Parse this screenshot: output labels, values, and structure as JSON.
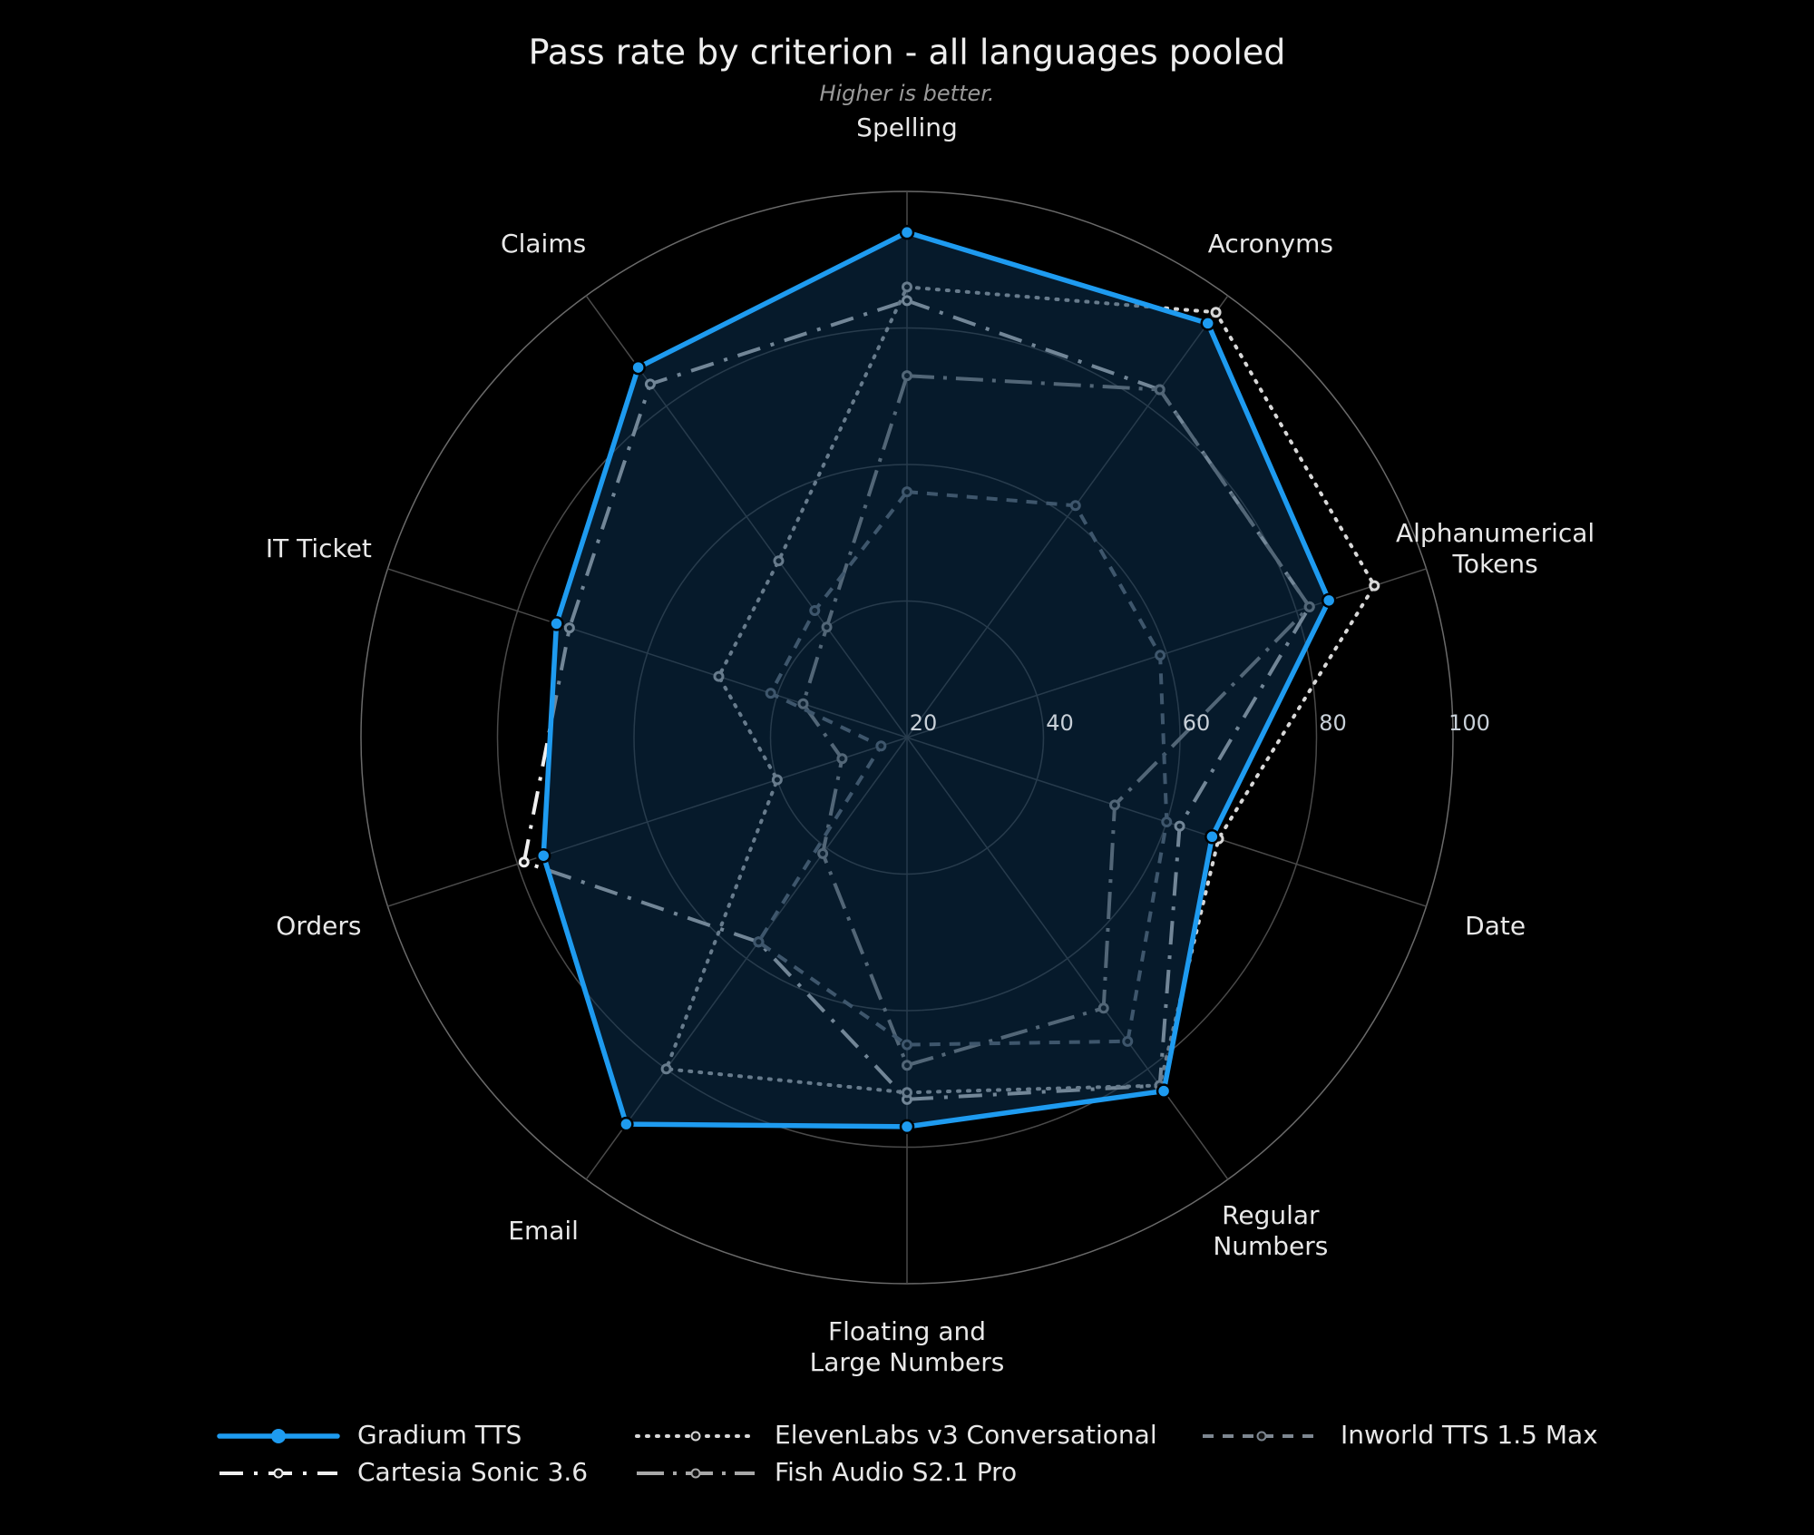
{
  "chart_data": {
    "type": "radar",
    "title": "Pass rate by criterion - all languages pooled",
    "subtitle": "Higher is better.",
    "categories": [
      "Spelling",
      "Acronyms",
      "Alphanumerical Tokens",
      "Date",
      "Regular Numbers",
      "Floating and Large Numbers",
      "Email",
      "Orders",
      "IT Ticket",
      "Claims"
    ],
    "ylim": [
      20,
      100
    ],
    "yticks": [
      20,
      40,
      60,
      80,
      100
    ],
    "grid": true,
    "legend": "bottom",
    "series": [
      {
        "name": "Gradium TTS",
        "color": "#1e9bf0",
        "values": [
          94,
          95,
          85,
          67,
          84,
          77,
          90,
          76,
          74,
          87
        ]
      },
      {
        "name": "Cartesia Sonic 3.6",
        "color": "#f0f0f0",
        "values": [
          84,
          83,
          82,
          62,
          83,
          73,
          57,
          79,
          72,
          84
        ]
      },
      {
        "name": "ElevenLabs v3 Conversational",
        "color": "#d8d8d8",
        "values": [
          86,
          97,
          92,
          68,
          83,
          72,
          80,
          40,
          49,
          52
        ]
      },
      {
        "name": "Fish Audio S2.1 Pro",
        "color": "#a8a8a8",
        "values": [
          73,
          83,
          82,
          52,
          69,
          68,
          41,
          30,
          36,
          40
        ]
      },
      {
        "name": "Inworld TTS 1.5 Max",
        "color": "#7d8690",
        "values": [
          56,
          62,
          59,
          60,
          75,
          65,
          57,
          24,
          41,
          43
        ]
      }
    ]
  }
}
